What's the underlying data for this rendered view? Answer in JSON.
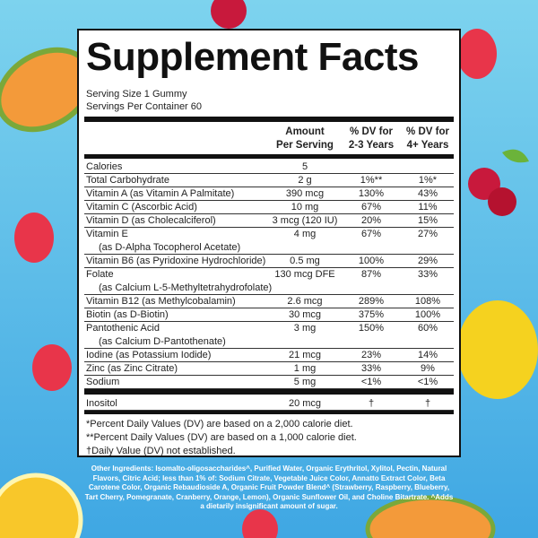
{
  "header": {
    "title": "Supplement Facts",
    "serving_size": "Serving Size 1 Gummy",
    "servings_per_container": "Servings Per Container 60"
  },
  "columns": [
    [
      "Amount",
      "Per Serving"
    ],
    [
      "% DV for",
      "2-3 Years"
    ],
    [
      "% DV for",
      "4+ Years"
    ]
  ],
  "rows": [
    {
      "name": "Calories",
      "amount": "5"
    },
    {
      "name": "Total Carbohydrate",
      "amount": "2 g",
      "dv1": "1%**",
      "dv2": "1%*"
    },
    {
      "name": "Vitamin A (as Vitamin A Palmitate)",
      "amount": "390 mcg",
      "dv1": "130%",
      "dv2": "43%"
    },
    {
      "name": "Vitamin C (Ascorbic Acid)",
      "amount": "10 mg",
      "dv1": "67%",
      "dv2": "11%"
    },
    {
      "name": "Vitamin D (as Cholecalciferol)",
      "amount": "3 mcg (120 IU)",
      "dv1": "20%",
      "dv2": "15%"
    },
    {
      "name": "Vitamin E",
      "sub": "(as D-Alpha Tocopherol Acetate)",
      "amount": "4 mg",
      "dv1": "67%",
      "dv2": "27%"
    },
    {
      "name": "Vitamin B6 (as Pyridoxine Hydrochloride)",
      "amount": "0.5 mg",
      "dv1": "100%",
      "dv2": "29%"
    },
    {
      "name": "Folate",
      "sub": "(as Calcium L-5-Methyltetrahydrofolate)",
      "amount": "130 mcg DFE",
      "dv1": "87%",
      "dv2": "33%"
    },
    {
      "name": "Vitamin B12 (as Methylcobalamin)",
      "amount": "2.6 mcg",
      "dv1": "289%",
      "dv2": "108%"
    },
    {
      "name": "Biotin (as D-Biotin)",
      "amount": "30 mcg",
      "dv1": "375%",
      "dv2": "100%"
    },
    {
      "name": "Pantothenic Acid",
      "sub": "(as Calcium D-Pantothenate)",
      "amount": "3 mg",
      "dv1": "150%",
      "dv2": "60%"
    },
    {
      "name": "Iodine (as Potassium Iodide)",
      "amount": "21 mcg",
      "dv1": "23%",
      "dv2": "14%"
    },
    {
      "name": "Zinc (as Zinc Citrate)",
      "amount": "1 mg",
      "dv1": "33%",
      "dv2": "9%"
    },
    {
      "name": "Sodium",
      "amount": "5 mg",
      "dv1": "<1%",
      "dv2": "<1%"
    }
  ],
  "extra_rows": [
    {
      "name": "Inositol",
      "amount": "20 mcg",
      "dv1": "†",
      "dv2": "†"
    }
  ],
  "footnotes": [
    "*Percent Daily Values (DV) are based on a 2,000 calorie diet.",
    "**Percent Daily Values (DV) are based on a 1,000 calorie diet.",
    "†Daily Value (DV) not established."
  ],
  "other_ingredients": "Other Ingredients: Isomalto-oligosaccharides^, Purified Water, Organic Erythritol, Xylitol, Pectin, Natural Flavors, Citric Acid; less than 1% of: Sodium Citrate, Vegetable Juice Color, Annatto Extract Color, Beta Carotene Color, Organic Rebaudioside A, Organic Fruit Powder Blend^ (Strawberry, Raspberry, Blueberry, Tart Cherry, Pomegranate, Cranberry, Orange, Lemon), Organic Sunflower Oil, and Choline Bitartrate. ^Adds a dietarily insignificant amount of sugar."
}
